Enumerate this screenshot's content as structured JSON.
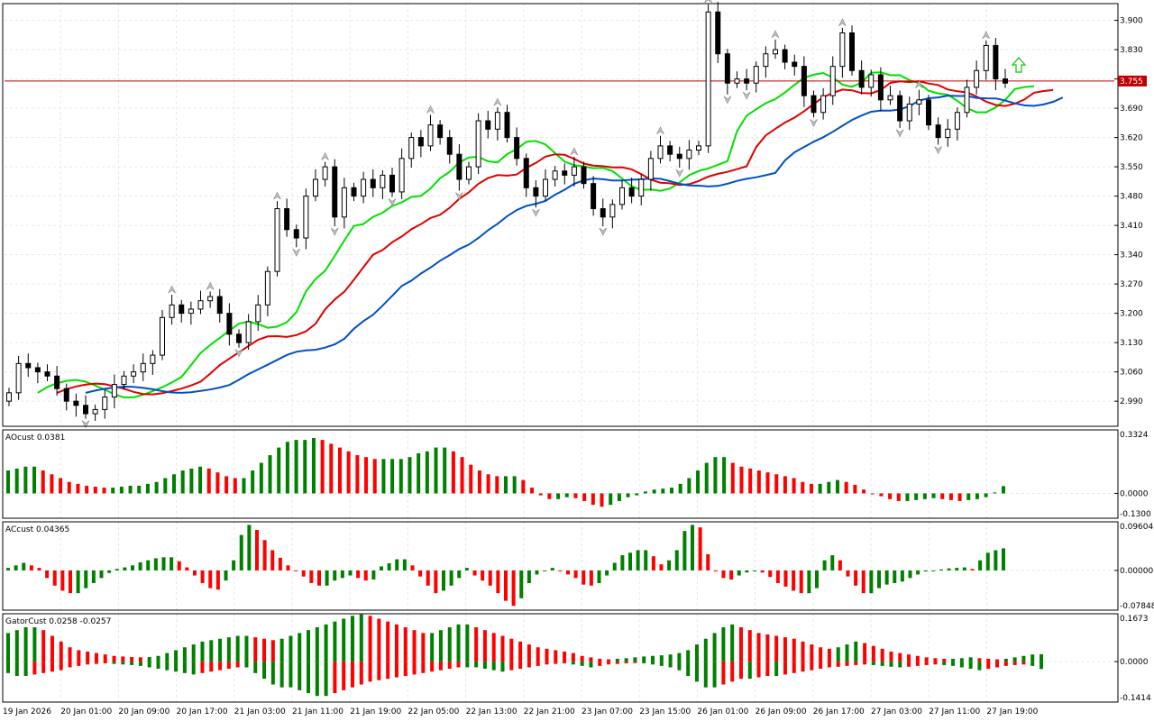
{
  "colors": {
    "bull": "#008000",
    "bear": "#ff0000",
    "green_line": "#00e000",
    "red_line": "#e00000",
    "blue_line": "#0050c8",
    "price_line": "#c00000",
    "grid": "#e6e6e6",
    "frame": "#000000"
  },
  "chart_data": [
    {
      "type": "candlestick",
      "panel": "main",
      "y_ticks": [
        "3.900",
        "3.830",
        "3.760",
        "3.690",
        "3.620",
        "3.550",
        "3.480",
        "3.410",
        "3.340",
        "3.270",
        "3.200",
        "3.130",
        "3.060",
        "2.990"
      ],
      "ylim": [
        2.93,
        3.94
      ],
      "current_price": "3.755",
      "x_tick_labels": [
        "19 Jan 2026",
        "20 Jan 01:00",
        "20 Jan 09:00",
        "20 Jan 17:00",
        "21 Jan 03:00",
        "21 Jan 11:00",
        "21 Jan 19:00",
        "22 Jan 05:00",
        "22 Jan 13:00",
        "22 Jan 21:00",
        "23 Jan 07:00",
        "23 Jan 15:00",
        "26 Jan 01:00",
        "26 Jan 09:00",
        "26 Jan 17:00",
        "27 Jan 03:00",
        "27 Jan 11:00",
        "27 Jan 19:00"
      ],
      "close": [
        3.01,
        3.08,
        3.07,
        3.06,
        3.05,
        3.02,
        2.99,
        2.98,
        2.96,
        2.97,
        3.0,
        3.03,
        3.05,
        3.06,
        3.08,
        3.1,
        3.19,
        3.22,
        3.2,
        3.21,
        3.23,
        3.24,
        3.2,
        3.15,
        3.13,
        3.18,
        3.22,
        3.3,
        3.45,
        3.4,
        3.38,
        3.48,
        3.52,
        3.55,
        3.43,
        3.5,
        3.48,
        3.52,
        3.5,
        3.53,
        3.49,
        3.57,
        3.62,
        3.6,
        3.65,
        3.62,
        3.58,
        3.52,
        3.55,
        3.66,
        3.64,
        3.68,
        3.62,
        3.57,
        3.5,
        3.48,
        3.52,
        3.54,
        3.53,
        3.55,
        3.51,
        3.45,
        3.43,
        3.46,
        3.5,
        3.48,
        3.52,
        3.57,
        3.6,
        3.58,
        3.57,
        3.59,
        3.6,
        3.92,
        3.82,
        3.75,
        3.76,
        3.75,
        3.79,
        3.82,
        3.83,
        3.8,
        3.79,
        3.72,
        3.68,
        3.72,
        3.79,
        3.87,
        3.78,
        3.74,
        3.77,
        3.71,
        3.72,
        3.66,
        3.7,
        3.71,
        3.65,
        3.62,
        3.64,
        3.68,
        3.74,
        3.78,
        3.84,
        3.76,
        3.75
      ],
      "series": [
        {
          "name": "",
          "color_key": "green_line"
        },
        {
          "name": "",
          "color_key": "red_line"
        },
        {
          "name": "",
          "color_key": "blue_line"
        }
      ]
    },
    {
      "type": "bar",
      "panel": "ao",
      "label": "AOcust 0.0381",
      "y_ticks": [
        "0.3324",
        "0.0000",
        "-0.1300"
      ],
      "ylim": [
        -0.13,
        0.3324
      ],
      "values": [
        0.12,
        0.13,
        0.14,
        0.14,
        0.12,
        0.1,
        0.08,
        0.06,
        0.05,
        0.04,
        0.035,
        0.03,
        0.03,
        0.035,
        0.04,
        0.04,
        0.05,
        0.06,
        0.08,
        0.1,
        0.12,
        0.13,
        0.14,
        0.13,
        0.11,
        0.09,
        0.08,
        0.08,
        0.12,
        0.16,
        0.2,
        0.24,
        0.27,
        0.28,
        0.28,
        0.29,
        0.28,
        0.26,
        0.24,
        0.22,
        0.2,
        0.19,
        0.18,
        0.18,
        0.18,
        0.18,
        0.19,
        0.21,
        0.22,
        0.24,
        0.24,
        0.22,
        0.19,
        0.15,
        0.12,
        0.1,
        0.09,
        0.09,
        0.09,
        0.07,
        0.03,
        -0.01,
        -0.03,
        -0.03,
        -0.02,
        -0.025,
        -0.04,
        -0.06,
        -0.07,
        -0.06,
        -0.04,
        -0.02,
        -0.01,
        0.01,
        0.02,
        0.025,
        0.03,
        0.05,
        0.08,
        0.12,
        0.16,
        0.19,
        0.19,
        0.16,
        0.14,
        0.13,
        0.12,
        0.11,
        0.1,
        0.09,
        0.08,
        0.06,
        0.05,
        0.05,
        0.06,
        0.07,
        0.06,
        0.045,
        0.02,
        0.0,
        -0.015,
        -0.03,
        -0.04,
        -0.04,
        -0.035,
        -0.03,
        -0.025,
        -0.03,
        -0.035,
        -0.04,
        -0.035,
        -0.03,
        -0.02,
        0.005,
        0.0381
      ]
    },
    {
      "type": "bar",
      "panel": "ac",
      "label": "ACcust 0.04365",
      "y_ticks": [
        "0.09604",
        "0.00000",
        "-0.07848"
      ],
      "ylim": [
        -0.07848,
        0.09604
      ],
      "values": [
        0.005,
        0.01,
        0.015,
        0.01,
        0.005,
        -0.015,
        -0.03,
        -0.04,
        -0.045,
        -0.045,
        -0.035,
        -0.025,
        -0.015,
        -0.005,
        0.003,
        0.006,
        0.01,
        0.016,
        0.02,
        0.024,
        0.026,
        0.026,
        0.018,
        0.006,
        -0.01,
        -0.025,
        -0.035,
        -0.038,
        -0.02,
        0.02,
        0.07,
        0.09,
        0.08,
        0.06,
        0.04,
        0.025,
        0.01,
        0.0,
        -0.012,
        -0.025,
        -0.03,
        -0.03,
        -0.02,
        -0.015,
        -0.01,
        -0.015,
        -0.02,
        -0.018,
        0.008,
        0.014,
        0.022,
        0.022,
        0.01,
        -0.012,
        -0.03,
        -0.045,
        -0.04,
        -0.03,
        -0.015,
        0.005,
        -0.01,
        -0.02,
        -0.03,
        -0.045,
        -0.06,
        -0.07,
        -0.055,
        -0.025,
        -0.008,
        0.0,
        0.005,
        0.0,
        -0.008,
        -0.015,
        -0.028,
        -0.03,
        -0.025,
        -0.01,
        0.015,
        0.03,
        0.035,
        0.04,
        0.04,
        0.028,
        0.012,
        0.02,
        0.04,
        0.078,
        0.09,
        0.085,
        0.032,
        0.0,
        -0.015,
        -0.018,
        -0.01,
        -0.004,
        0.0,
        -0.004,
        -0.013,
        -0.025,
        -0.032,
        -0.04,
        -0.045,
        -0.045,
        -0.035,
        0.02,
        0.03,
        0.02,
        -0.012,
        -0.03,
        -0.045,
        -0.045,
        -0.035,
        -0.028,
        -0.025,
        -0.022,
        -0.015,
        -0.008,
        -0.002,
        0.0,
        0.002,
        0.004,
        0.005,
        0.006,
        0.003,
        0.02,
        0.035,
        0.04,
        0.04365
      ]
    },
    {
      "type": "bar",
      "panel": "gator",
      "label": "GatorCust 0.0258 -0.0257",
      "y_ticks": [
        "0.1673",
        "0.0000",
        "-0.1414"
      ],
      "ylim": [
        -0.1414,
        0.1673
      ],
      "upper": [
        0.1,
        0.11,
        0.12,
        0.12,
        0.11,
        0.09,
        0.07,
        0.05,
        0.04,
        0.035,
        0.03,
        0.025,
        0.02,
        0.018,
        0.016,
        0.015,
        0.016,
        0.02,
        0.03,
        0.04,
        0.05,
        0.06,
        0.07,
        0.075,
        0.08,
        0.085,
        0.09,
        0.09,
        0.085,
        0.08,
        0.075,
        0.08,
        0.09,
        0.1,
        0.11,
        0.12,
        0.13,
        0.14,
        0.15,
        0.16,
        0.165,
        0.16,
        0.15,
        0.14,
        0.13,
        0.12,
        0.11,
        0.1,
        0.1,
        0.11,
        0.12,
        0.13,
        0.13,
        0.12,
        0.11,
        0.1,
        0.09,
        0.08,
        0.07,
        0.06,
        0.05,
        0.045,
        0.04,
        0.035,
        0.03,
        0.02,
        0.015,
        0.01,
        0.008,
        0.01,
        0.012,
        0.015,
        0.018,
        0.02,
        0.022,
        0.025,
        0.03,
        0.04,
        0.06,
        0.08,
        0.1,
        0.12,
        0.13,
        0.12,
        0.11,
        0.1,
        0.095,
        0.09,
        0.085,
        0.08,
        0.07,
        0.06,
        0.05,
        0.045,
        0.05,
        0.06,
        0.07,
        0.065,
        0.055,
        0.045,
        0.035,
        0.03,
        0.025,
        0.02,
        0.015,
        0.012,
        0.01,
        0.01,
        0.012,
        0.015,
        0.012,
        0.01,
        0.008,
        0.01,
        0.015,
        0.02,
        0.025,
        0.0258
      ],
      "lower": [
        -0.04,
        -0.05,
        -0.05,
        -0.045,
        -0.04,
        -0.035,
        -0.03,
        -0.02,
        -0.015,
        -0.01,
        -0.008,
        -0.006,
        -0.008,
        -0.01,
        -0.012,
        -0.015,
        -0.02,
        -0.025,
        -0.03,
        -0.035,
        -0.04,
        -0.045,
        -0.04,
        -0.035,
        -0.03,
        -0.025,
        -0.02,
        -0.02,
        -0.04,
        -0.06,
        -0.08,
        -0.09,
        -0.09,
        -0.1,
        -0.11,
        -0.12,
        -0.12,
        -0.11,
        -0.1,
        -0.09,
        -0.08,
        -0.07,
        -0.065,
        -0.06,
        -0.055,
        -0.05,
        -0.045,
        -0.04,
        -0.035,
        -0.03,
        -0.025,
        -0.02,
        -0.02,
        -0.02,
        -0.025,
        -0.03,
        -0.035,
        -0.03,
        -0.025,
        -0.02,
        -0.015,
        -0.01,
        -0.008,
        -0.006,
        -0.01,
        -0.015,
        -0.02,
        -0.015,
        -0.01,
        -0.008,
        -0.006,
        -0.005,
        -0.006,
        -0.01,
        -0.015,
        -0.02,
        -0.03,
        -0.05,
        -0.07,
        -0.09,
        -0.09,
        -0.08,
        -0.07,
        -0.06,
        -0.06,
        -0.055,
        -0.05,
        -0.05,
        -0.045,
        -0.04,
        -0.035,
        -0.03,
        -0.025,
        -0.02,
        -0.018,
        -0.015,
        -0.012,
        -0.01,
        -0.012,
        -0.015,
        -0.018,
        -0.02,
        -0.018,
        -0.015,
        -0.012,
        -0.01,
        -0.012,
        -0.015,
        -0.02,
        -0.025,
        -0.03,
        -0.025,
        -0.02,
        -0.015,
        -0.012,
        -0.01,
        -0.015,
        -0.0257
      ]
    }
  ]
}
